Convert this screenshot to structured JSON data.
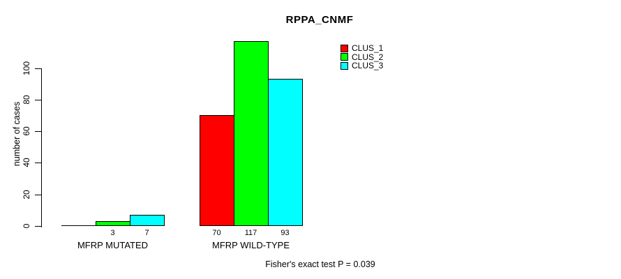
{
  "title": "RPPA_CNMF",
  "y_axis": {
    "label": "number of cases",
    "ticks": [
      0,
      20,
      40,
      60,
      80,
      100
    ]
  },
  "legend": {
    "items": [
      {
        "label": "CLUS_1",
        "color": "#ff0000"
      },
      {
        "label": "CLUS_2",
        "color": "#00ff00"
      },
      {
        "label": "CLUS_3",
        "color": "#00ffff"
      }
    ]
  },
  "footer": "Fisher's exact test P = 0.039",
  "chart_data": {
    "type": "bar",
    "title": "RPPA_CNMF",
    "xlabel": "",
    "ylabel": "number of cases",
    "ylim": [
      0,
      120
    ],
    "yticks": [
      0,
      20,
      40,
      60,
      80,
      100
    ],
    "grid": false,
    "legend_position": "top-right",
    "categories": [
      "MFRP MUTATED",
      "MFRP WILD-TYPE"
    ],
    "series": [
      {
        "name": "CLUS_1",
        "color": "#ff0000",
        "values": [
          0,
          70
        ]
      },
      {
        "name": "CLUS_2",
        "color": "#00ff00",
        "values": [
          3,
          117
        ]
      },
      {
        "name": "CLUS_3",
        "color": "#00ffff",
        "values": [
          7,
          93
        ]
      }
    ],
    "bar_value_labels": [
      [
        "",
        "3",
        "7"
      ],
      [
        "70",
        "117",
        "93"
      ]
    ],
    "annotation": "Fisher's exact test P = 0.039"
  }
}
